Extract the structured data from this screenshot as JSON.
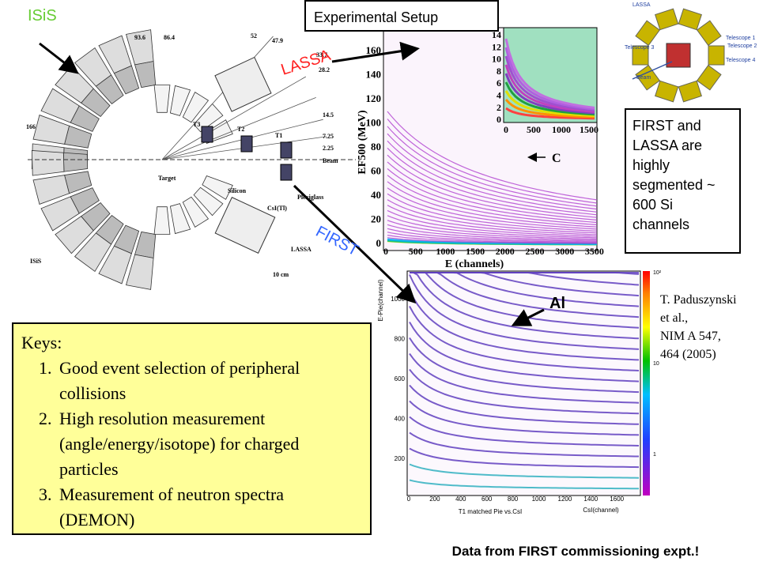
{
  "labels": {
    "isis": "ISiS",
    "setup": "Experimental Setup",
    "lassa": "LASSA",
    "first": "FIRST",
    "carbon": "C",
    "aluminum": "Al"
  },
  "note": "FIRST and LASSA are highly segmented ~ 600 Si channels",
  "reference": [
    "T. Paduszynski",
    "et al.,",
    "NIM A 547,",
    "464 (2005)"
  ],
  "keys": {
    "title": "Keys:",
    "items": [
      "Good event selection of peripheral collisions",
      "High resolution measurement (angle/energy/isotope) for charged particles",
      "Measurement of neutron spectra (DEMON)"
    ]
  },
  "caption": "Data from FIRST commissioning expt.!",
  "detector": {
    "labels": [
      "93.6",
      "86.4",
      "52",
      "47.9",
      "33.7",
      "28.2",
      "14.5",
      "7.25",
      "2.25",
      "Beam",
      "166",
      "T3",
      "T2",
      "T1",
      "Target",
      "Silicon",
      "CsI(Tl)",
      "Plexiglass",
      "ISiS",
      "LASSA",
      "10 cm"
    ]
  },
  "plot1": {
    "yticks": [
      "160",
      "140",
      "120",
      "100",
      "80",
      "60",
      "40",
      "20",
      "0"
    ],
    "xticks": [
      "0",
      "500",
      "1000",
      "1500",
      "2000",
      "2500",
      "3000",
      "3500"
    ],
    "ylabel": "EF500 (MeV)",
    "xlabel": "E    (channels)",
    "inset_yticks": [
      "14",
      "12",
      "10",
      "8",
      "6",
      "4",
      "2",
      "0"
    ],
    "inset_xticks": [
      "0",
      "500",
      "1000",
      "1500"
    ]
  },
  "plot2": {
    "yticks": [
      "1000",
      "800",
      "600",
      "400",
      "200"
    ],
    "xticks": [
      "0",
      "200",
      "400",
      "600",
      "800",
      "1000",
      "1200",
      "1400",
      "1600"
    ],
    "ylabel": "E-Pie(channel)",
    "xlabel": "CsI(channel)",
    "title": "T1 matched Pie vs.CsI",
    "colorbar": [
      "10²",
      "10",
      "1"
    ]
  },
  "schematic": {
    "labels": [
      "LASSA",
      "Telescope 1",
      "Telescope 2",
      "Telescope 3",
      "Telescope 4",
      "Beam"
    ]
  }
}
